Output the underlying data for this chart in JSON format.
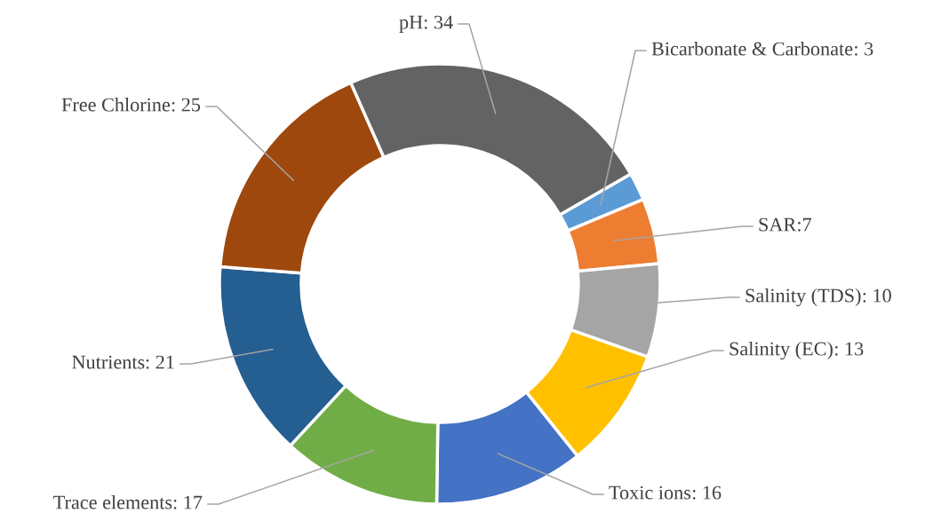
{
  "chart_data": {
    "type": "donut",
    "categories": [
      "Bicarbonate & Carbonate",
      "SAR",
      "Salinity (TDS)",
      "Salinity (EC)",
      "Toxic ions",
      "Trace elements",
      "Nutrients",
      "Free Chlorine",
      "pH"
    ],
    "values": [
      3,
      7,
      10,
      13,
      16,
      17,
      21,
      25,
      34
    ],
    "colors": [
      "#5b9bd5",
      "#ed7d31",
      "#a5a5a5",
      "#ffc000",
      "#4472c4",
      "#70ad47",
      "#255e91",
      "#9e480e",
      "#636363"
    ],
    "value_labels": [
      ": 3",
      ":7",
      ": 10",
      ": 13",
      ": 16",
      ": 17",
      ": 21",
      ": 25",
      ": 34"
    ],
    "legend": false
  }
}
